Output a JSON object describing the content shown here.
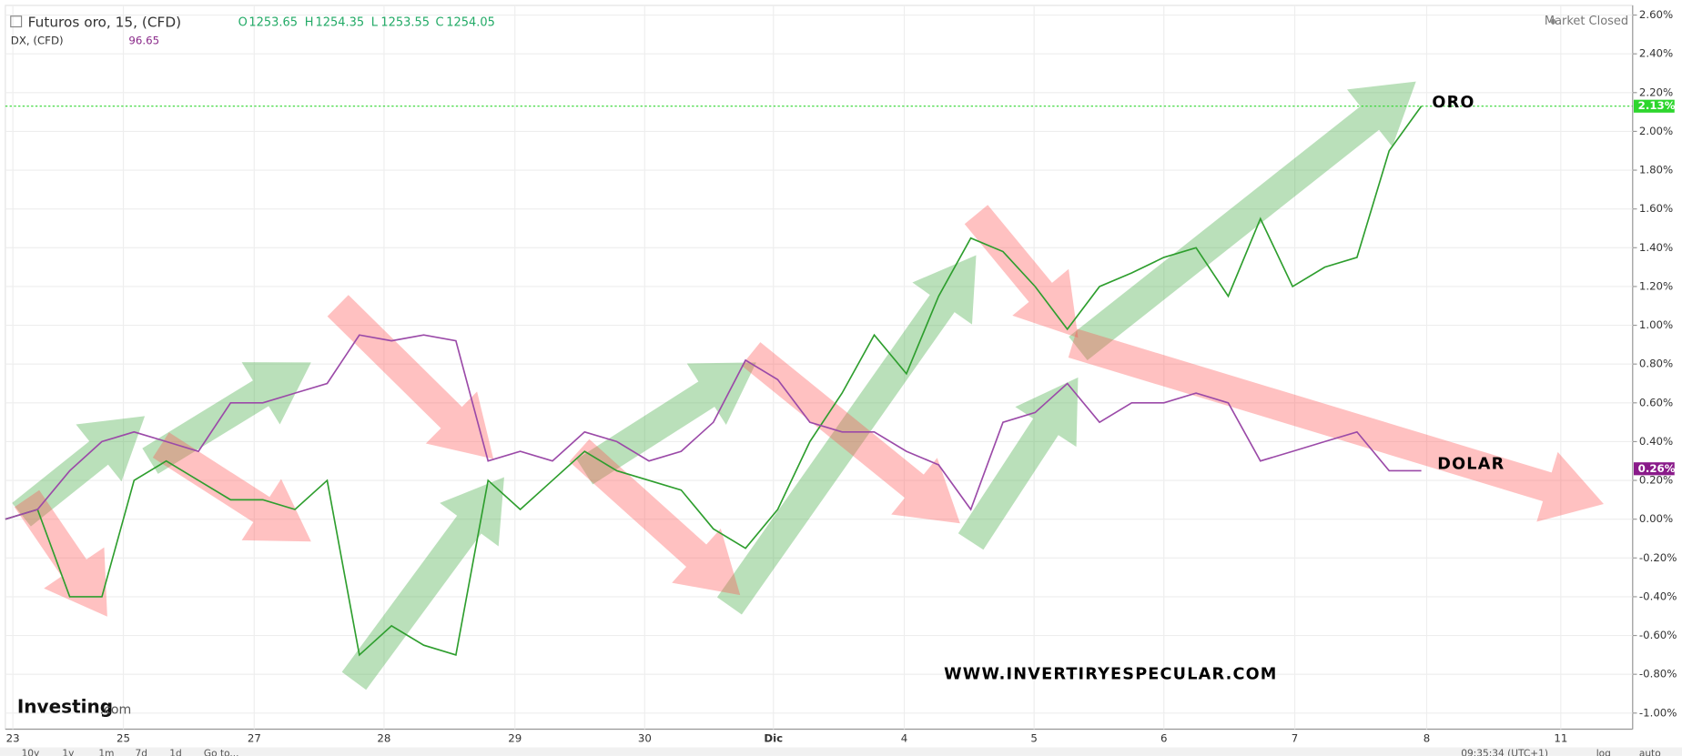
{
  "header": {
    "symbol": "Futuros oro, 15, (CFD)",
    "open_label": "O",
    "open": 1253.65,
    "high_label": "H",
    "high": 1254.35,
    "low_label": "L",
    "low": 1253.55,
    "close_label": "C",
    "close": 1254.05,
    "second_symbol": "DX, (CFD)",
    "second_value": 96.65,
    "status": "Market Closed"
  },
  "chart_data": {
    "type": "line",
    "x_labels": [
      "23",
      "25",
      "27",
      "28",
      "29",
      "30",
      "Dic",
      "4",
      "5",
      "6",
      "7",
      "8",
      "11"
    ],
    "series": [
      {
        "name": "ORO",
        "color": "#2e9e2e",
        "price_tag": {
          "value": 2.13,
          "label": "2.13%"
        },
        "tag_color": "#2dd62d",
        "values": [
          0.0,
          0.05,
          -0.4,
          -0.4,
          0.2,
          0.3,
          0.2,
          0.1,
          0.1,
          0.05,
          0.2,
          -0.7,
          -0.55,
          -0.65,
          -0.7,
          0.2,
          0.05,
          0.2,
          0.35,
          0.25,
          0.2,
          0.15,
          -0.05,
          -0.15,
          0.05,
          0.4,
          0.65,
          0.95,
          0.75,
          1.15,
          1.45,
          1.38,
          1.2,
          0.98,
          1.2,
          1.27,
          1.35,
          1.4,
          1.15,
          1.55,
          1.2,
          1.3,
          1.35,
          1.9,
          2.13
        ]
      },
      {
        "name": "DOLAR",
        "color": "#9b4aa8",
        "price_tag": {
          "value": 0.26,
          "label": "0.26%"
        },
        "tag_color": "#8a1a8a",
        "values": [
          0.0,
          0.05,
          0.25,
          0.4,
          0.45,
          0.4,
          0.35,
          0.6,
          0.6,
          0.65,
          0.7,
          0.95,
          0.92,
          0.95,
          0.92,
          0.3,
          0.35,
          0.3,
          0.45,
          0.4,
          0.3,
          0.35,
          0.5,
          0.82,
          0.72,
          0.5,
          0.45,
          0.45,
          0.35,
          0.28,
          0.05,
          0.5,
          0.55,
          0.7,
          0.5,
          0.6,
          0.6,
          0.65,
          0.6,
          0.3,
          0.35,
          0.4,
          0.45,
          0.25,
          0.25
        ]
      }
    ],
    "ylim": [
      -1.0,
      2.6
    ],
    "yticks": [
      {
        "value": -1.0,
        "label": "-1.00%"
      },
      {
        "value": -0.8,
        "label": "-0.80%"
      },
      {
        "value": -0.6,
        "label": "-0.60%"
      },
      {
        "value": -0.4,
        "label": "-0.40%"
      },
      {
        "value": -0.2,
        "label": "-0.20%"
      },
      {
        "value": 0.0,
        "label": "0.00%"
      },
      {
        "value": 0.2,
        "label": "0.20%"
      },
      {
        "value": 0.4,
        "label": "0.40%"
      },
      {
        "value": 0.6,
        "label": "0.60%"
      },
      {
        "value": 0.8,
        "label": "0.80%"
      },
      {
        "value": 1.0,
        "label": "1.00%"
      },
      {
        "value": 1.2,
        "label": "1.20%"
      },
      {
        "value": 1.4,
        "label": "1.40%"
      },
      {
        "value": 1.6,
        "label": "1.60%"
      },
      {
        "value": 1.8,
        "label": "1.80%"
      },
      {
        "value": 2.0,
        "label": "2.00%"
      },
      {
        "value": 2.2,
        "label": "2.20%"
      },
      {
        "value": 2.4,
        "label": "2.40%"
      },
      {
        "value": 2.6,
        "label": "2.60%"
      }
    ],
    "grid": true,
    "annotations": [
      "ORO",
      "DOLAR",
      "WWW.INVERTIRYESPECULAR.COM"
    ]
  },
  "brand": "Investing",
  "brand_suffix": ".com",
  "toolbar": [
    "10y",
    "1y",
    "1m",
    "7d",
    "1d",
    "Go to...",
    "09:35:34 (UTC+1)",
    "log",
    "auto"
  ]
}
